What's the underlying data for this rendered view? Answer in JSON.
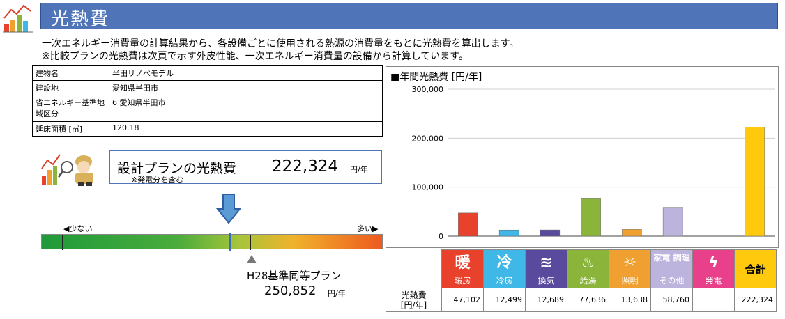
{
  "header": {
    "title": "光熱費"
  },
  "description": {
    "line1": "一次エネルギー消費量の計算結果から、各設備ごとに使用される熱源の消費量をもとに光熱費を算出します。",
    "line2": "※比較プランの光熱費は次頁で示す外皮性能、一次エネルギー消費量の設備から計算しています。"
  },
  "info": {
    "rows": [
      {
        "label": "建物名",
        "value": "半田リノベモデル"
      },
      {
        "label": "建設地",
        "value": "愛知県半田市"
      },
      {
        "label": "省エネルギー基準地域区分",
        "value": "6  愛知県半田市"
      },
      {
        "label": "延床面積 [㎡]",
        "value": "120.18"
      }
    ]
  },
  "design_plan": {
    "label": "設計プランの光熱費",
    "note": "※発電分を含む",
    "value": "222,324",
    "unit": "円/年",
    "amount": 222324
  },
  "scale": {
    "less_label": "◀少ない",
    "more_label": "多い▶",
    "design_fraction": 0.55,
    "standard_fraction": 0.61,
    "start_tick_fraction": 0.06
  },
  "standard_plan": {
    "label": "H28基準同等プラン",
    "value": "250,852",
    "unit": "円/年",
    "amount": 250852
  },
  "chart_data": {
    "type": "bar",
    "title": "■年間光熱費 [円/年]",
    "categories": [
      "暖房",
      "冷房",
      "換気",
      "給湯",
      "照明",
      "その他",
      "発電",
      "合計"
    ],
    "values": [
      47102,
      12499,
      12689,
      77636,
      13638,
      58760,
      0,
      222324
    ],
    "colors": [
      "#e8412c",
      "#3fb8e8",
      "#5a4a9e",
      "#8ab53a",
      "#f0a030",
      "#bcb4dc",
      "#e8408a",
      "#ffc90e"
    ],
    "ylim": [
      0,
      300000
    ],
    "yticks": [
      0,
      100000,
      200000,
      300000
    ],
    "ytick_labels": [
      "0",
      "100,000",
      "200,000",
      "300,000"
    ],
    "grid": true
  },
  "cost_table": {
    "row_label_line1": "光熱費",
    "row_label_line2": "[円/年]",
    "categories": [
      {
        "symbol": "暖",
        "caption": "暖房",
        "color": "#e8412c",
        "icon": "heating-icon"
      },
      {
        "symbol": "冷",
        "caption": "冷房",
        "color": "#3fb8e8",
        "icon": "cooling-icon"
      },
      {
        "symbol": "≋",
        "caption": "換気",
        "color": "#5a4a9e",
        "icon": "ventilation-icon"
      },
      {
        "symbol": "♨",
        "caption": "給湯",
        "color": "#8ab53a",
        "icon": "hot-water-icon"
      },
      {
        "symbol": "☼",
        "caption": "照明",
        "color": "#f0a030",
        "icon": "lighting-icon"
      },
      {
        "symbol": "家電 調理",
        "caption": "その他",
        "color": "#bcb4dc",
        "icon": "appliance-icon"
      },
      {
        "symbol": "ϟ",
        "caption": "発電",
        "color": "#e8408a",
        "icon": "power-generation-icon"
      }
    ],
    "total_label": "合計",
    "values": [
      "47,102",
      "12,499",
      "12,689",
      "77,636",
      "13,638",
      "58,760",
      "",
      "222,324"
    ]
  }
}
